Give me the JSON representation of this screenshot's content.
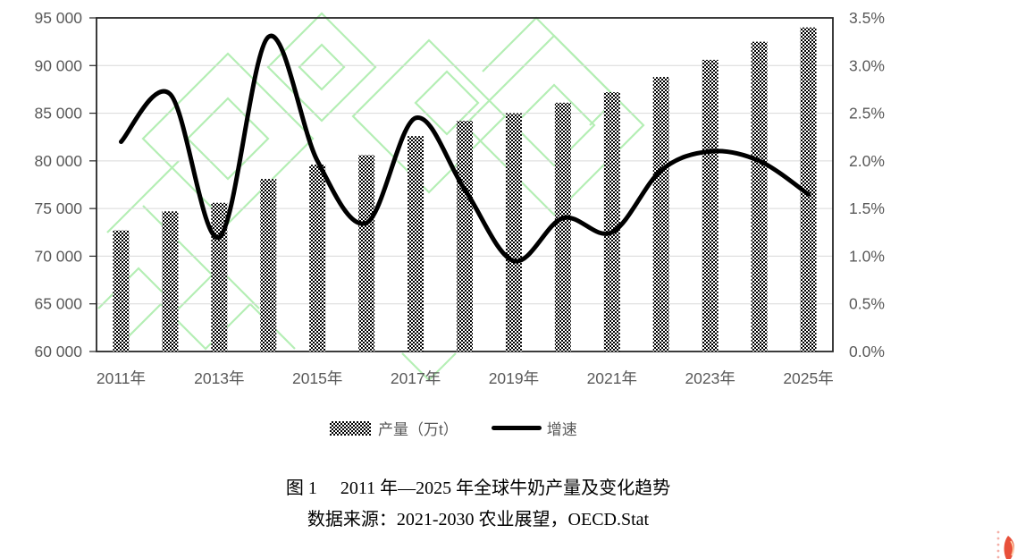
{
  "chart_data": {
    "type": "combo",
    "categories": [
      2011,
      2012,
      2013,
      2014,
      2015,
      2016,
      2017,
      2018,
      2019,
      2020,
      2021,
      2022,
      2023,
      2024,
      2025
    ],
    "x_axis_labels": [
      "2011年",
      "2013年",
      "2015年",
      "2017年",
      "2019年",
      "2021年",
      "2023年",
      "2025年"
    ],
    "series": [
      {
        "name": "产量（万t）",
        "type": "bar",
        "axis": "left",
        "values": [
          72700,
          74700,
          75600,
          78100,
          79600,
          80600,
          82600,
          84200,
          85000,
          86100,
          87200,
          88800,
          90600,
          92500,
          94000
        ]
      },
      {
        "name": "增速",
        "type": "line",
        "axis": "right",
        "unit": "%",
        "values": [
          2.2,
          2.7,
          1.2,
          3.3,
          2.0,
          1.35,
          2.45,
          1.7,
          0.95,
          1.4,
          1.25,
          1.9,
          2.1,
          2.0,
          1.65
        ]
      }
    ],
    "left_axis": {
      "min": 60000,
      "max": 95000,
      "step": 5000,
      "tick_labels": [
        "60 000",
        "65 000",
        "70 000",
        "75 000",
        "80 000",
        "85 000",
        "90 000",
        "95 000"
      ]
    },
    "right_axis": {
      "min": 0,
      "max": 3.5,
      "step": 0.5,
      "tick_labels": [
        "0.0%",
        "0.5%",
        "1.0%",
        "1.5%",
        "2.0%",
        "2.5%",
        "3.0%",
        "3.5%"
      ]
    },
    "grid": true,
    "legend_position": "bottom"
  },
  "legend": {
    "bar_label": "产量（万t）",
    "line_label": "增速"
  },
  "caption": {
    "figure_label": "图 1",
    "title": "2011 年—2025 年全球牛奶产量及变化趋势",
    "source": "数据来源：2021-2030 农业展望，OECD.Stat"
  },
  "colors": {
    "axis_text": "#595959",
    "gridline": "#d9d9d9",
    "plot_border": "#262626",
    "bar_pattern": "#000000",
    "growth_line": "#000000",
    "watermark_green": "#a8eca8",
    "corner_red": "#e8503a"
  }
}
